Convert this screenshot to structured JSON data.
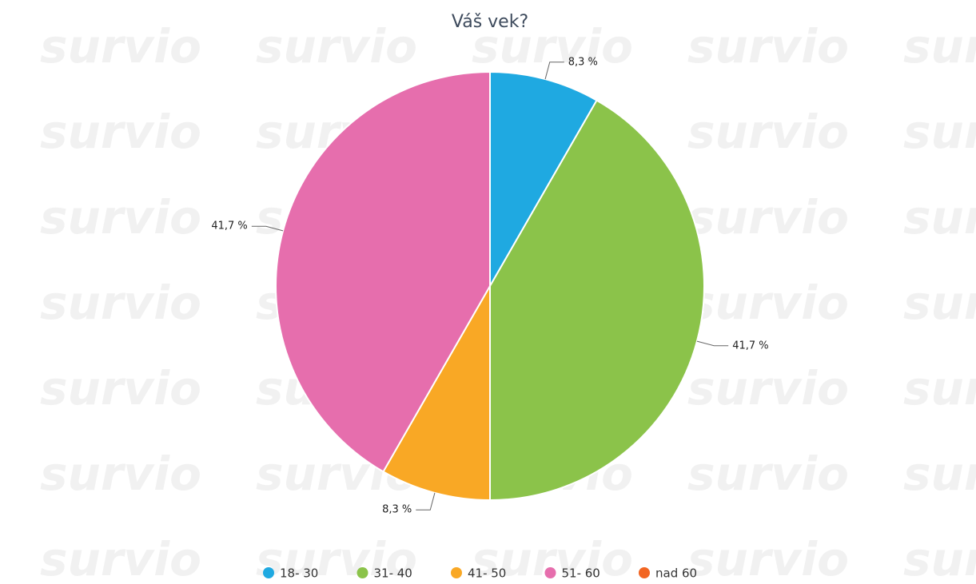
{
  "chart_data": {
    "type": "pie",
    "title": "Váš vek?",
    "watermark": "survio",
    "categories": [
      "18- 30",
      "31- 40",
      "41- 50",
      "51- 60",
      "nad 60"
    ],
    "values": [
      8.3,
      41.7,
      8.3,
      41.7,
      0
    ],
    "value_labels": [
      "8,3 %",
      "41,7 %",
      "8,3 %",
      "41,7 %",
      null
    ],
    "colors": [
      "#1fa9e1",
      "#8bc34a",
      "#f9a825",
      "#e66ead",
      "#f26522"
    ],
    "legend": "bottom"
  }
}
